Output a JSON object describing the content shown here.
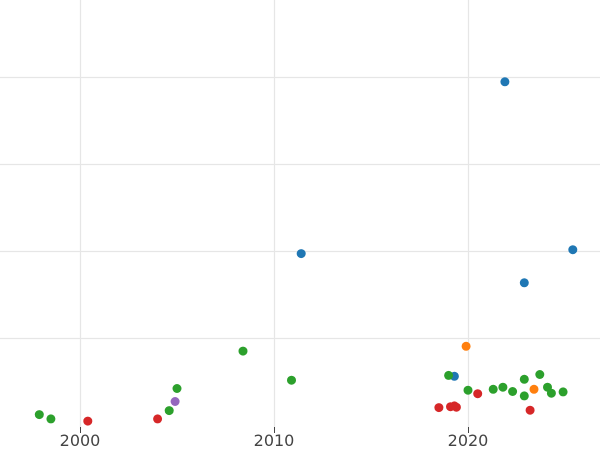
{
  "chart_data": {
    "type": "scatter",
    "title": "",
    "xlabel": "",
    "ylabel": "",
    "x_ticks": [
      2000,
      2010,
      2020
    ],
    "xlim": [
      1998,
      2026.9
    ],
    "ylim": [
      0,
      1000
    ],
    "y_grid": [
      200,
      400,
      600,
      800
    ],
    "grid": true,
    "legend": "none",
    "series": [
      {
        "color": "#1f77b4",
        "points": [
          {
            "x": 2021.9,
            "y": 789
          },
          {
            "x": 2011.4,
            "y": 394
          },
          {
            "x": 2025.4,
            "y": 403
          },
          {
            "x": 2022.9,
            "y": 327
          },
          {
            "x": 2019.3,
            "y": 112
          }
        ]
      },
      {
        "color": "#ff7f0e",
        "points": [
          {
            "x": 2019.9,
            "y": 181
          },
          {
            "x": 2023.4,
            "y": 82
          }
        ]
      },
      {
        "color": "#2ca02c",
        "points": [
          {
            "x": 2008.4,
            "y": 170
          },
          {
            "x": 2010.9,
            "y": 103
          },
          {
            "x": 2005.0,
            "y": 84
          },
          {
            "x": 2004.6,
            "y": 33
          },
          {
            "x": 1997.9,
            "y": 24
          },
          {
            "x": 1998.5,
            "y": 14
          },
          {
            "x": 2019.0,
            "y": 114
          },
          {
            "x": 2020.0,
            "y": 80
          },
          {
            "x": 2021.3,
            "y": 82
          },
          {
            "x": 2021.8,
            "y": 87
          },
          {
            "x": 2022.3,
            "y": 77
          },
          {
            "x": 2022.9,
            "y": 105
          },
          {
            "x": 2022.9,
            "y": 67
          },
          {
            "x": 2023.7,
            "y": 116
          },
          {
            "x": 2024.1,
            "y": 87
          },
          {
            "x": 2024.3,
            "y": 73
          },
          {
            "x": 2024.9,
            "y": 76
          }
        ]
      },
      {
        "color": "#d62728",
        "points": [
          {
            "x": 2000.4,
            "y": 9
          },
          {
            "x": 2004.0,
            "y": 14
          },
          {
            "x": 2018.5,
            "y": 40
          },
          {
            "x": 2019.1,
            "y": 42
          },
          {
            "x": 2019.4,
            "y": 41
          },
          {
            "x": 2019.3,
            "y": 44
          },
          {
            "x": 2020.5,
            "y": 72
          },
          {
            "x": 2023.2,
            "y": 34
          }
        ]
      },
      {
        "color": "#9467bd",
        "points": [
          {
            "x": 2004.9,
            "y": 54
          }
        ]
      }
    ]
  }
}
